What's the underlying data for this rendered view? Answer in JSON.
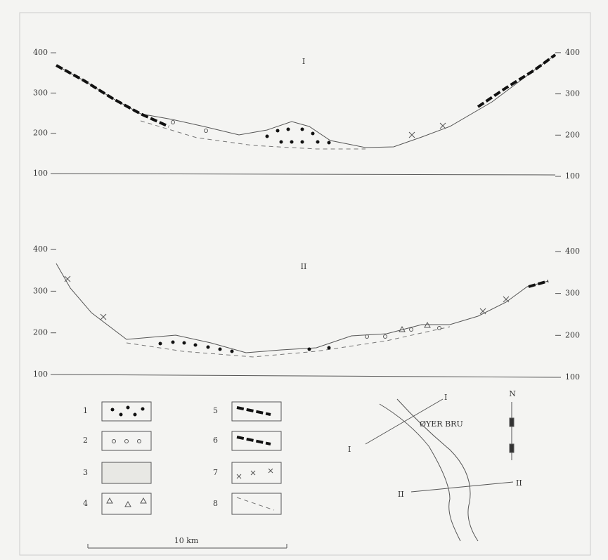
{
  "profiles": [
    {
      "label": "I",
      "left_ticks": [
        400,
        300,
        200,
        100
      ],
      "right_ticks": [
        400,
        300,
        200,
        100
      ]
    },
    {
      "label": "II",
      "left_ticks": [
        400,
        300,
        200,
        100
      ],
      "right_ticks": [
        400,
        300,
        200,
        100
      ]
    }
  ],
  "legend": [
    "1",
    "2",
    "3",
    "4",
    "5",
    "6",
    "7",
    "8"
  ],
  "map": {
    "section_labels": [
      "I",
      "I",
      "II",
      "II"
    ],
    "place": "ØYER BRU",
    "north": "N"
  },
  "scale": "10 km"
}
